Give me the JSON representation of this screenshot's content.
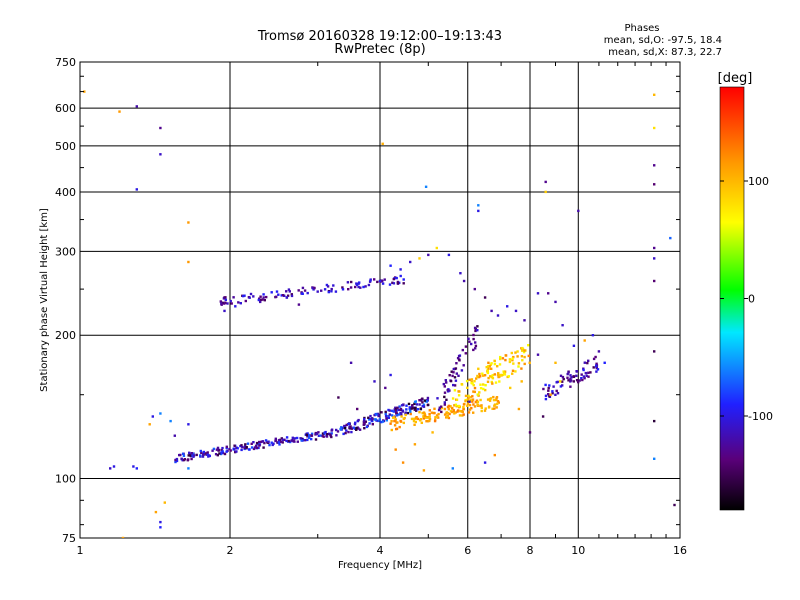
{
  "chart_data": {
    "type": "scatter",
    "title": "Tromsø 20160328 19:12:00–19:13:43",
    "subtitle": "RwPretec (8p)",
    "stats": {
      "heading": "Phases",
      "line_o": "mean, sd,O: -97.5, 18.4",
      "line_x": "mean, sd,X:  87.3, 22.7"
    },
    "xlabel": "Frequency [MHz]",
    "ylabel": "Stationary phase Virtual Height [km]",
    "x_scale": "log",
    "y_scale": "log",
    "xlim": [
      1,
      16
    ],
    "ylim": [
      75,
      750
    ],
    "x_ticks": [
      {
        "value": 1,
        "label": "1"
      },
      {
        "value": 2,
        "label": "2"
      },
      {
        "value": 4,
        "label": "4"
      },
      {
        "value": 6,
        "label": "6"
      },
      {
        "value": 8,
        "label": "8"
      },
      {
        "value": 10,
        "label": "10"
      },
      {
        "value": 16,
        "label": "16"
      }
    ],
    "y_ticks": [
      {
        "value": 75,
        "label": "75"
      },
      {
        "value": 100,
        "label": "100"
      },
      {
        "value": 200,
        "label": "200"
      },
      {
        "value": 300,
        "label": "300"
      },
      {
        "value": 400,
        "label": "400"
      },
      {
        "value": 500,
        "label": "500"
      },
      {
        "value": 600,
        "label": "600"
      },
      {
        "value": 750,
        "label": "750"
      }
    ],
    "grid": true,
    "colorbar": {
      "title": "[deg]",
      "range": [
        -180,
        180
      ],
      "ticks": [
        {
          "value": 100,
          "label": "100"
        },
        {
          "value": 0,
          "label": "0"
        },
        {
          "value": -100,
          "label": "-100"
        }
      ]
    },
    "point_value": "phase_deg",
    "points": [
      [
        1.02,
        650,
        110
      ],
      [
        1.2,
        590,
        115
      ],
      [
        1.3,
        605,
        -120
      ],
      [
        1.45,
        545,
        -130
      ],
      [
        1.45,
        480,
        -110
      ],
      [
        1.3,
        405,
        -100
      ],
      [
        1.65,
        345,
        115
      ],
      [
        1.65,
        285,
        115
      ],
      [
        4.05,
        505,
        105
      ],
      [
        4.95,
        410,
        -60
      ],
      [
        6.3,
        375,
        -60
      ],
      [
        6.3,
        365,
        -100
      ],
      [
        8.6,
        420,
        -130
      ],
      [
        8.6,
        400,
        90
      ],
      [
        10.0,
        365,
        -120
      ],
      [
        14.2,
        640,
        100
      ],
      [
        14.2,
        545,
        80
      ],
      [
        14.2,
        455,
        -130
      ],
      [
        14.2,
        415,
        -140
      ],
      [
        14.2,
        305,
        -130
      ],
      [
        14.2,
        290,
        -110
      ],
      [
        14.2,
        260,
        -140
      ],
      [
        14.2,
        185,
        -150
      ],
      [
        14.2,
        132,
        -160
      ],
      [
        14.2,
        110,
        -60
      ],
      [
        15.3,
        320,
        -70
      ],
      [
        15.6,
        88,
        -150
      ],
      [
        1.15,
        105,
        -110
      ],
      [
        1.17,
        106,
        -100
      ],
      [
        1.28,
        106,
        -100
      ],
      [
        1.3,
        105,
        -90
      ],
      [
        1.22,
        75,
        110
      ],
      [
        1.42,
        85,
        110
      ],
      [
        1.48,
        89,
        100
      ],
      [
        1.45,
        81,
        -100
      ],
      [
        1.45,
        79,
        -90
      ],
      [
        1.65,
        105,
        -60
      ],
      [
        1.38,
        130,
        110
      ],
      [
        1.4,
        135,
        -100
      ],
      [
        1.45,
        137,
        -60
      ],
      [
        1.52,
        132,
        -60
      ],
      [
        1.55,
        123,
        -120
      ],
      [
        1.65,
        130,
        -100
      ],
      [
        1.95,
        225,
        -110
      ],
      [
        2.05,
        230,
        -100
      ],
      [
        2.3,
        235,
        -120
      ],
      [
        2.6,
        240,
        -110
      ],
      [
        2.75,
        232,
        -130
      ],
      [
        3.0,
        247,
        -110
      ],
      [
        3.2,
        250,
        -120
      ],
      [
        3.5,
        252,
        -130
      ],
      [
        3.8,
        255,
        -110
      ],
      [
        4.0,
        260,
        -100
      ],
      [
        4.2,
        280,
        -90
      ],
      [
        4.4,
        275,
        -100
      ],
      [
        4.6,
        285,
        -110
      ],
      [
        4.8,
        290,
        90
      ],
      [
        5.0,
        295,
        -120
      ],
      [
        5.2,
        305,
        80
      ],
      [
        5.5,
        295,
        -100
      ],
      [
        5.8,
        270,
        -110
      ],
      [
        5.9,
        260,
        -120
      ],
      [
        6.2,
        250,
        -130
      ],
      [
        6.5,
        240,
        -150
      ],
      [
        6.7,
        225,
        -120
      ],
      [
        6.9,
        220,
        -110
      ],
      [
        7.2,
        230,
        -100
      ],
      [
        7.5,
        225,
        -110
      ],
      [
        7.8,
        215,
        -120
      ],
      [
        8.3,
        245,
        -110
      ],
      [
        8.7,
        245,
        -130
      ],
      [
        9.0,
        235,
        -120
      ],
      [
        9.3,
        210,
        -110
      ],
      [
        9.8,
        190,
        -100
      ],
      [
        10.3,
        195,
        110
      ],
      [
        10.7,
        200,
        -100
      ],
      [
        11.0,
        185,
        -120
      ],
      [
        11.3,
        175,
        -90
      ],
      [
        6.05,
        145,
        -120
      ],
      [
        6.5,
        108,
        -100
      ],
      [
        6.8,
        112,
        120
      ],
      [
        8.0,
        125,
        -140
      ],
      [
        8.5,
        135,
        -150
      ],
      [
        8.8,
        150,
        115
      ],
      [
        9.2,
        160,
        80
      ],
      [
        9.0,
        175,
        100
      ],
      [
        8.3,
        182,
        -120
      ],
      [
        7.6,
        140,
        110
      ],
      [
        4.45,
        108,
        120
      ],
      [
        4.9,
        104,
        110
      ],
      [
        5.6,
        105,
        -60
      ],
      [
        6.3,
        170,
        90
      ],
      [
        6.6,
        175,
        120
      ],
      [
        6.9,
        165,
        100
      ],
      [
        7.3,
        155,
        90
      ],
      [
        7.7,
        160,
        100
      ],
      [
        5.1,
        125,
        100
      ],
      [
        4.7,
        118,
        110
      ],
      [
        4.3,
        115,
        120
      ],
      [
        5.4,
        140,
        115
      ],
      [
        3.6,
        140,
        -140
      ],
      [
        3.3,
        148,
        -150
      ],
      [
        3.5,
        175,
        -120
      ],
      [
        3.9,
        160,
        -110
      ],
      [
        4.1,
        155,
        -130
      ],
      [
        4.2,
        165,
        -100
      ]
    ],
    "clusters": [
      {
        "name": "f2",
        "x": [
          1.55,
          3.3
        ],
        "y0": 110,
        "y1": 125,
        "n": 200,
        "jitter": 0.018,
        "phase": [
          -160,
          -70
        ]
      },
      {
        "name": "f3",
        "x": [
          3.3,
          5.0
        ],
        "y0": 125,
        "y1": 145,
        "n": 160,
        "jitter": 0.025,
        "phase": [
          -170,
          -60
        ]
      },
      {
        "name": "f4",
        "x": [
          4.2,
          7.0
        ],
        "y0": 130,
        "y1": 145,
        "n": 150,
        "jitter": 0.03,
        "phase": [
          90,
          130
        ]
      },
      {
        "name": "f5",
        "x": [
          5.6,
          8.0
        ],
        "y0": 145,
        "y1": 185,
        "n": 130,
        "jitter": 0.06,
        "phase": [
          60,
          125
        ]
      },
      {
        "name": "f6",
        "x": [
          8.5,
          11.0
        ],
        "y0": 150,
        "y1": 175,
        "n": 70,
        "jitter": 0.04,
        "phase": [
          -150,
          -90
        ]
      },
      {
        "name": "f7",
        "x": [
          5.2,
          6.3
        ],
        "y0": 140,
        "y1": 200,
        "n": 60,
        "jitter": 0.06,
        "phase": [
          -160,
          -100
        ]
      },
      {
        "name": "f8",
        "x": [
          1.9,
          4.5
        ],
        "y0": 235,
        "y1": 262,
        "n": 110,
        "jitter": 0.02,
        "phase": [
          -150,
          -90
        ]
      }
    ]
  }
}
